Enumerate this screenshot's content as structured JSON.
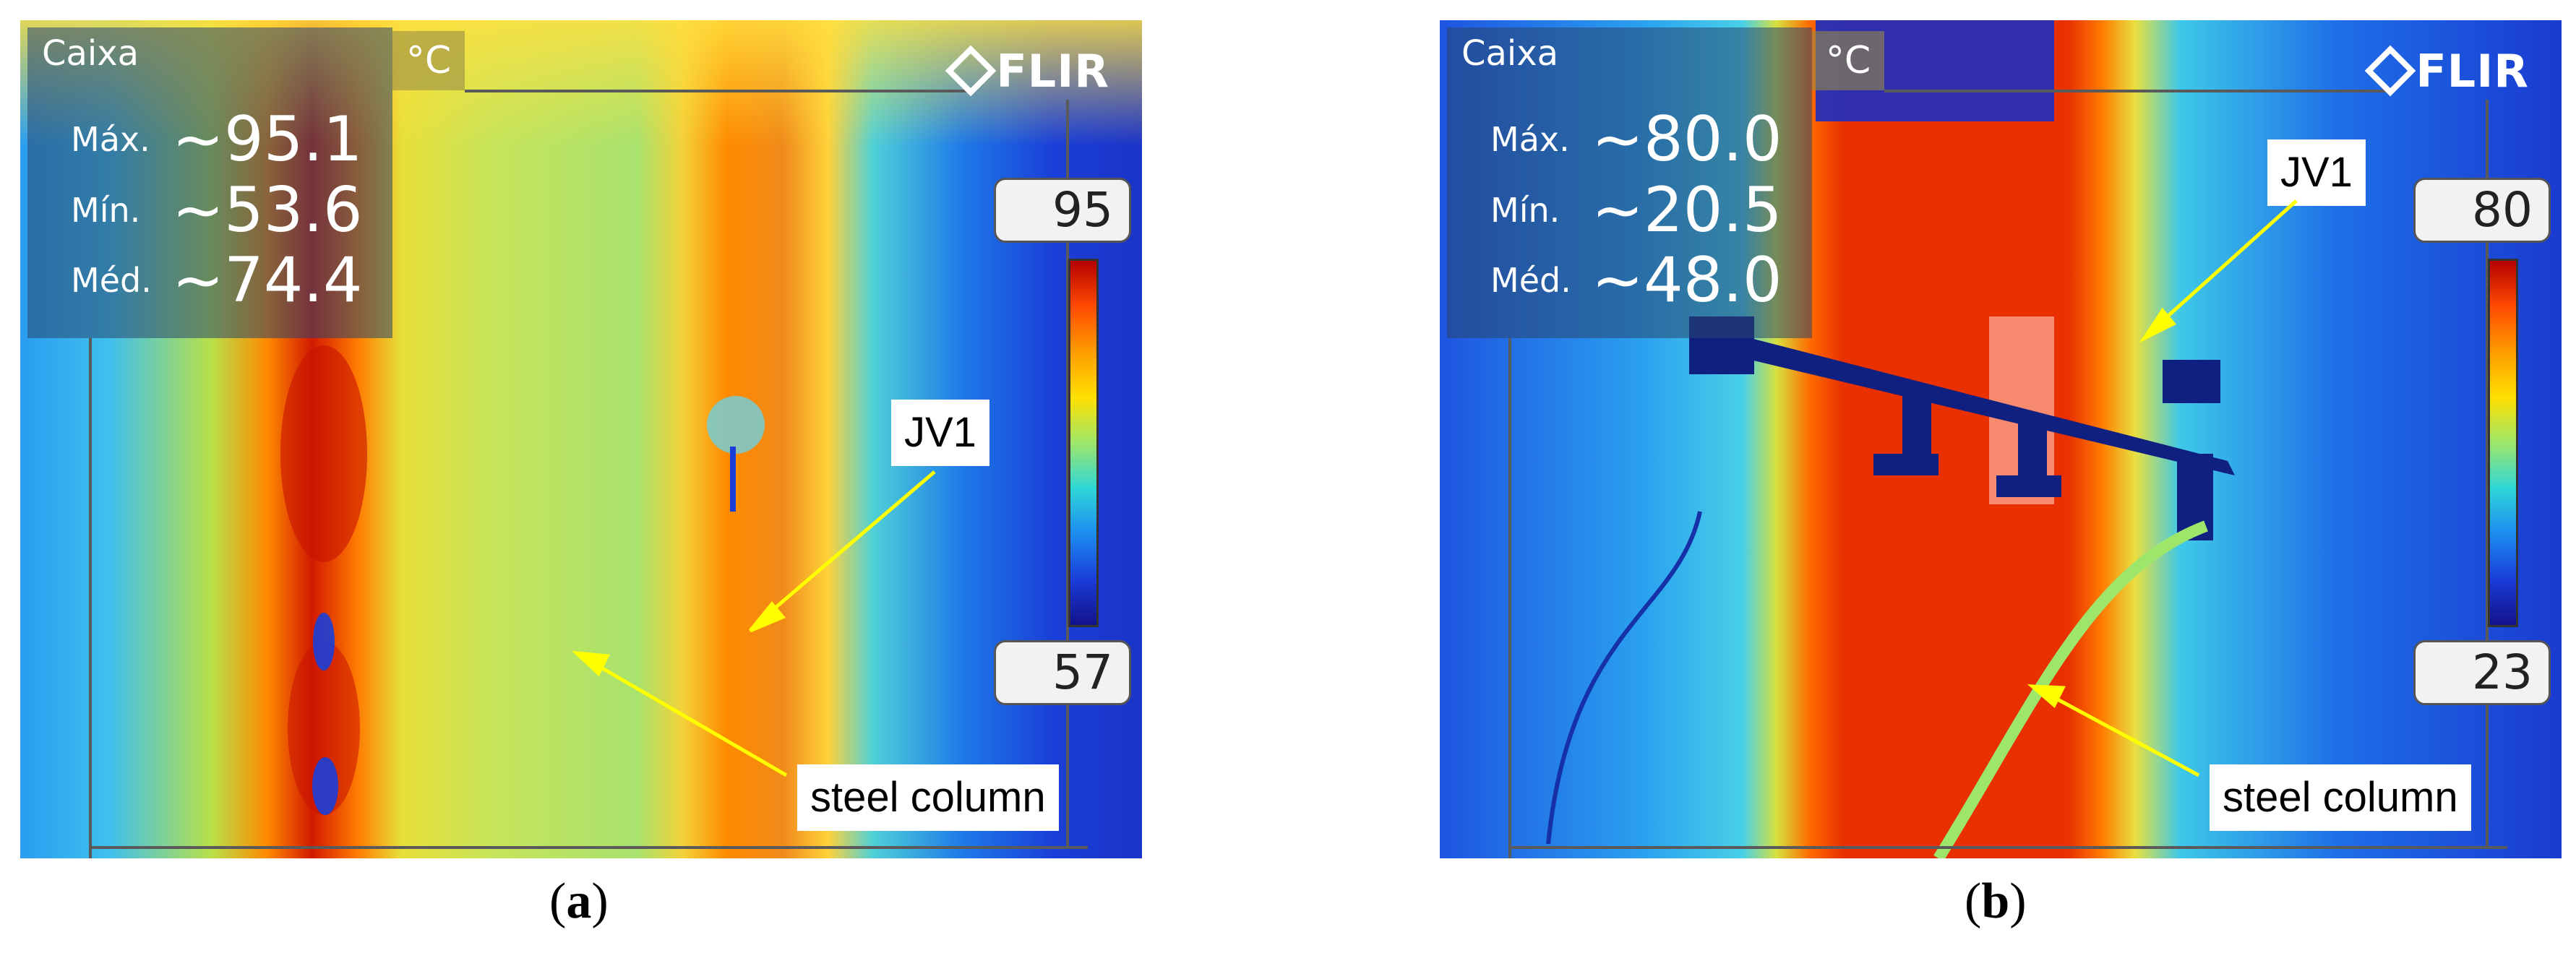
{
  "panels": [
    {
      "id": "a",
      "stats": {
        "title": "Caixa",
        "max_label": "Máx.",
        "max_value": "~95.1",
        "min_label": "Mín.",
        "min_value": "~53.6",
        "avg_label": "Méd.",
        "avg_value": "~74.4"
      },
      "unit": "°C",
      "logo": "FLIR",
      "scale": {
        "top": "95",
        "bottom": "57"
      },
      "labels": {
        "jv1": "JV1",
        "steel_column": "steel column"
      },
      "caption": {
        "open": "(",
        "letter": "a",
        "close": ")"
      }
    },
    {
      "id": "b",
      "stats": {
        "title": "Caixa",
        "max_label": "Máx.",
        "max_value": "~80.0",
        "min_label": "Mín.",
        "min_value": "~20.5",
        "avg_label": "Méd.",
        "avg_value": "~48.0"
      },
      "unit": "°C",
      "logo": "FLIR",
      "scale": {
        "top": "80",
        "bottom": "23"
      },
      "labels": {
        "jv1": "JV1",
        "steel_column": "steel column"
      },
      "caption": {
        "open": "(",
        "letter": "b",
        "close": ")"
      }
    }
  ],
  "colors": {
    "annotation_arrow": "#ffff00"
  }
}
